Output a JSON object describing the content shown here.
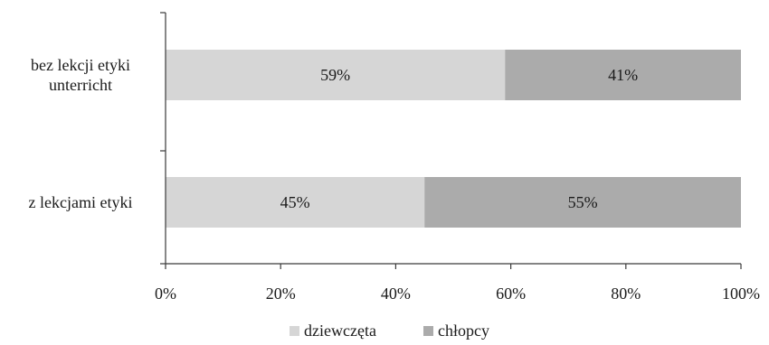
{
  "chart_data": {
    "type": "bar",
    "orientation": "horizontal",
    "stacked": "percent",
    "categories": [
      "bez lekcji etyki unterricht",
      "z lekcjami etyki"
    ],
    "category_lines": [
      [
        "bez lekcji etyki",
        "unterricht"
      ],
      [
        "z lekcjami etyki"
      ]
    ],
    "series": [
      {
        "name": "dziewczęta",
        "values": [
          59,
          45
        ],
        "labels": [
          "59%",
          "45%"
        ],
        "color": "#d6d6d6"
      },
      {
        "name": "chłopcy",
        "values": [
          41,
          55
        ],
        "labels": [
          "41%",
          "55%"
        ],
        "color": "#ababab"
      }
    ],
    "xlim": [
      0,
      100
    ],
    "ticks": [
      0,
      20,
      40,
      60,
      80,
      100
    ],
    "tick_labels": [
      "0%",
      "20%",
      "40%",
      "60%",
      "80%",
      "100%"
    ],
    "grid": false,
    "legend_position": "bottom",
    "title": "",
    "xlabel": "",
    "ylabel": ""
  }
}
